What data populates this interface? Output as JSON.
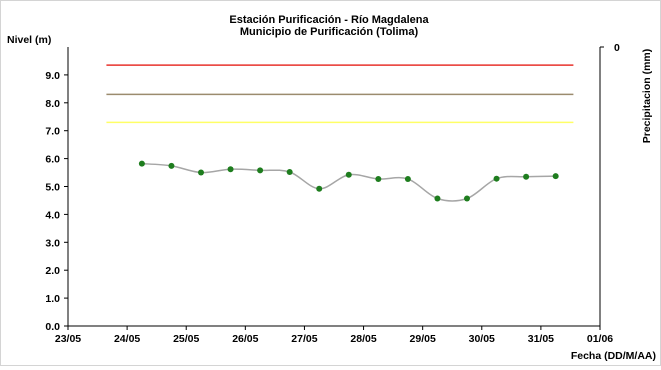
{
  "chart_data": {
    "type": "line",
    "title": "Estación Purificación - Río Magdalena",
    "subtitle": "Municipio de Purificación (Tolima)",
    "ylabel": "Nivel (m)",
    "y2label": "Precipitacion (mm)",
    "xlabel": "Fecha (DD/M/AA)",
    "ylim": [
      0,
      10
    ],
    "yticks": [
      "0.0",
      "1.0",
      "2.0",
      "3.0",
      "4.0",
      "5.0",
      "6.0",
      "7.0",
      "8.0",
      "9.0"
    ],
    "y2ticks": [
      "0"
    ],
    "xlim": [
      0,
      9
    ],
    "xticks": [
      "23/05",
      "24/05",
      "25/05",
      "26/05",
      "27/05",
      "28/05",
      "29/05",
      "30/05",
      "31/05",
      "01/06"
    ],
    "grid": false,
    "threshold_lines": [
      {
        "value": 9.35,
        "color": "#e8322c"
      },
      {
        "value": 8.3,
        "color": "#9b8b6e"
      },
      {
        "value": 7.3,
        "color": "#ffff66"
      }
    ],
    "series": [
      {
        "color": "#1e7d1e",
        "line_color": "#a6a6a6",
        "x": [
          1.25,
          1.75,
          2.25,
          2.75,
          3.25,
          3.75,
          4.25,
          4.75,
          5.25,
          5.75,
          6.25,
          6.75,
          7.25,
          7.75,
          8.25
        ],
        "values": [
          5.82,
          5.74,
          5.5,
          5.62,
          5.58,
          5.52,
          4.92,
          5.42,
          5.27,
          5.27,
          4.57,
          4.57,
          5.28,
          5.35,
          5.37
        ]
      }
    ]
  }
}
